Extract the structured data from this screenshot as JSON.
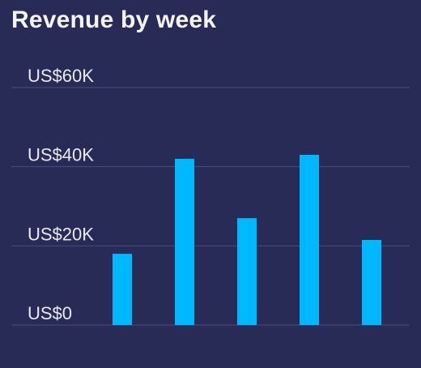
{
  "chart_data": {
    "type": "bar",
    "title": "Revenue by week",
    "categories": [
      "",
      "",
      "",
      "",
      ""
    ],
    "values": [
      18000,
      42000,
      27000,
      43000,
      21500
    ],
    "ylim": [
      0,
      60000
    ],
    "yticks": [
      0,
      20000,
      40000,
      60000
    ],
    "ytick_labels": [
      "US$0",
      "US$20K",
      "US$40K",
      "US$60K"
    ],
    "xlabel": "",
    "ylabel": "",
    "grid": true,
    "legend": "none"
  },
  "colors": {
    "background": "#282b56",
    "bar": "#00b8ff",
    "gridline": "#4a4d78",
    "text": "#f4f4f8"
  }
}
